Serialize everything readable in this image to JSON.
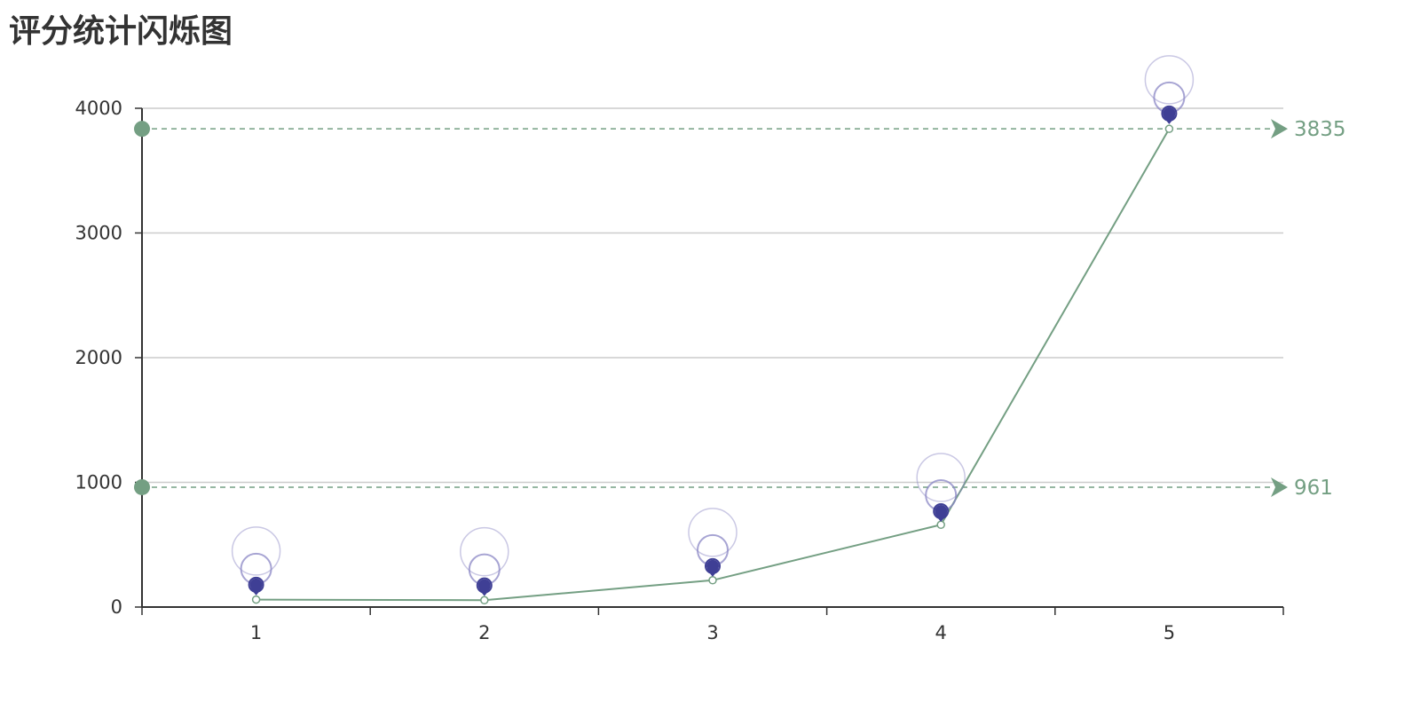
{
  "title": "评分统计闪烁图",
  "colors": {
    "line": "#749f83",
    "pin": "#3f3f95",
    "ripple": "#8a86c4",
    "grid": "#cccccc",
    "axis": "#333333",
    "text": "#333333"
  },
  "chart_data": {
    "type": "line",
    "title": "评分统计闪烁图",
    "categories": [
      "1",
      "2",
      "3",
      "4",
      "5"
    ],
    "series": [
      {
        "values": [
          60,
          55,
          215,
          660,
          3835
        ]
      }
    ],
    "scatter_effect": {
      "values": [
        150,
        145,
        300,
        740,
        3930
      ],
      "marker": "pin-with-ripple"
    },
    "ylim": [
      0,
      4000
    ],
    "yticks": [
      0,
      1000,
      2000,
      3000,
      4000
    ],
    "mark_lines": [
      {
        "value": 3835,
        "label": "3835"
      },
      {
        "value": 961,
        "label": "961"
      }
    ],
    "grid": true,
    "legend": "none"
  }
}
